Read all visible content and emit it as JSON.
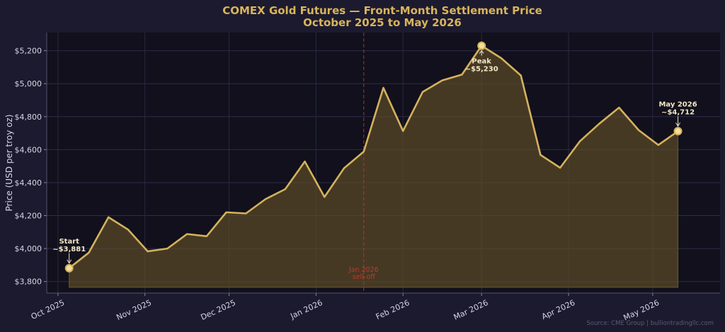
{
  "chart_data": {
    "type": "area",
    "title": "COMEX Gold Futures — Front-Month Settlement Price",
    "subtitle": "October 2025 to May 2026",
    "ylabel": "Price (USD per troy oz)",
    "xlabel": "",
    "ylim": [
      3730,
      5310
    ],
    "xlim": [
      "2025-09-27",
      "2026-05-25"
    ],
    "yticks": [
      3800,
      4000,
      4200,
      4400,
      4600,
      4800,
      5000,
      5200
    ],
    "ytick_labels": [
      "$3,800",
      "$4,000",
      "$4,200",
      "$4,400",
      "$4,600",
      "$4,800",
      "$5,000",
      "$5,200"
    ],
    "xticks": [
      {
        "date": "2025-10-01",
        "label": "Oct 2025"
      },
      {
        "date": "2025-11-01",
        "label": "Nov 2025"
      },
      {
        "date": "2025-12-01",
        "label": "Dec 2025"
      },
      {
        "date": "2026-01-01",
        "label": "Jan 2026"
      },
      {
        "date": "2026-02-01",
        "label": "Feb 2026"
      },
      {
        "date": "2026-03-01",
        "label": "Mar 2026"
      },
      {
        "date": "2026-04-01",
        "label": "Apr 2026"
      },
      {
        "date": "2026-05-01",
        "label": "May 2026"
      }
    ],
    "grid": true,
    "series": [
      {
        "color": "#d4b25c",
        "points": [
          {
            "x": "2025-10-05",
            "y": 3881
          },
          {
            "x": "2025-10-12",
            "y": 3975
          },
          {
            "x": "2025-10-19",
            "y": 4190
          },
          {
            "x": "2025-10-26",
            "y": 4115
          },
          {
            "x": "2025-11-02",
            "y": 3983
          },
          {
            "x": "2025-11-09",
            "y": 4000
          },
          {
            "x": "2025-11-16",
            "y": 4088
          },
          {
            "x": "2025-11-23",
            "y": 4075
          },
          {
            "x": "2025-11-30",
            "y": 4220
          },
          {
            "x": "2025-12-07",
            "y": 4213
          },
          {
            "x": "2025-12-14",
            "y": 4300
          },
          {
            "x": "2025-12-21",
            "y": 4360
          },
          {
            "x": "2025-12-28",
            "y": 4528
          },
          {
            "x": "2026-01-04",
            "y": 4313
          },
          {
            "x": "2026-01-11",
            "y": 4488
          },
          {
            "x": "2026-01-18",
            "y": 4588
          },
          {
            "x": "2026-01-25",
            "y": 4975
          },
          {
            "x": "2026-02-01",
            "y": 4713
          },
          {
            "x": "2026-02-08",
            "y": 4950
          },
          {
            "x": "2026-02-15",
            "y": 5020
          },
          {
            "x": "2026-02-22",
            "y": 5055
          },
          {
            "x": "2026-03-01",
            "y": 5230
          },
          {
            "x": "2026-03-08",
            "y": 5155
          },
          {
            "x": "2026-03-15",
            "y": 5050
          },
          {
            "x": "2026-03-22",
            "y": 4568
          },
          {
            "x": "2026-03-29",
            "y": 4490
          },
          {
            "x": "2026-04-05",
            "y": 4650
          },
          {
            "x": "2026-04-12",
            "y": 4758
          },
          {
            "x": "2026-04-19",
            "y": 4855
          },
          {
            "x": "2026-04-26",
            "y": 4718
          },
          {
            "x": "2026-05-03",
            "y": 4628
          },
          {
            "x": "2026-05-10",
            "y": 4712
          }
        ]
      }
    ],
    "annotations": [
      {
        "x": "2025-10-05",
        "y": 3881,
        "lines": [
          "Start",
          "~$3,881"
        ],
        "position": "above"
      },
      {
        "x": "2026-03-01",
        "y": 5230,
        "lines": [
          "Peak",
          "~$5,230"
        ],
        "position": "below"
      },
      {
        "x": "2026-05-10",
        "y": 4712,
        "lines": [
          "May 2026",
          "~$4,712"
        ],
        "position": "above"
      }
    ],
    "event_line": {
      "x": "2026-01-18",
      "lines": [
        "Jan 2026",
        "sell-off"
      ],
      "color": "#c0392b"
    }
  },
  "source": "Source: CME Group  |  bulliontradingllc.com",
  "colors": {
    "background": "#1c1a2e",
    "plot_background": "#11101c",
    "line": "#d4b25c",
    "title": "#d9b45a",
    "event": "#c0392b"
  }
}
